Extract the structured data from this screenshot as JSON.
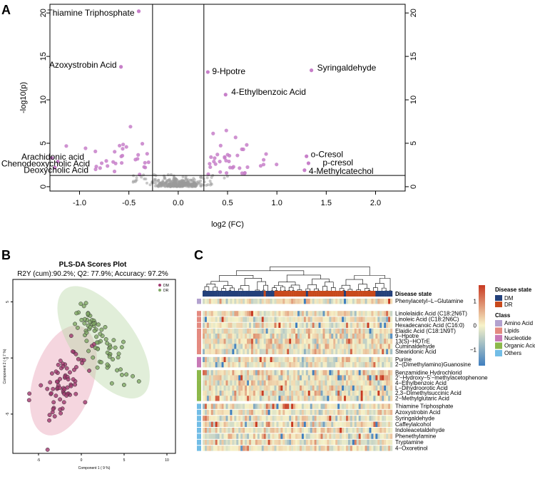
{
  "panels": {
    "a": {
      "letter": "A"
    },
    "b": {
      "letter": "B"
    },
    "c": {
      "letter": "C"
    }
  },
  "chart_data": [
    {
      "type": "scatter",
      "id": "volcano",
      "title": "",
      "xlabel": "log2 (FC)",
      "ylabel": "-log10(p)",
      "xlim": [
        -1.3,
        2.3
      ],
      "ylim": [
        -0.5,
        21
      ],
      "xticks": [
        -1.0,
        -0.5,
        0.0,
        0.5,
        1.0,
        1.5,
        2.0
      ],
      "xtick_labels": [
        "-1.0",
        "-0.5",
        "0.0",
        "0.5",
        "1.0",
        "1.5",
        "2.0"
      ],
      "yticks": [
        0,
        5,
        10,
        15,
        20
      ],
      "ytick_labels": [
        "0",
        "5",
        "10",
        "15",
        "20"
      ],
      "thresholds": {
        "fc": [
          -0.26,
          0.26
        ],
        "p": 1.3
      },
      "point_colors": {
        "significant": "#c77fc9",
        "ns": "#9a9a9a"
      },
      "labeled_points": [
        {
          "label": "Thiamine Triphosphate",
          "x": -0.4,
          "y": 20.2
        },
        {
          "label": "Azoxystrobin Acid",
          "x": -0.58,
          "y": 13.8
        },
        {
          "label": "9-Hpotre",
          "x": 0.3,
          "y": 13.2
        },
        {
          "label": "Syringaldehyde",
          "x": 1.35,
          "y": 13.4
        },
        {
          "label": "4-Ethylbenzoic Acid",
          "x": 0.48,
          "y": 10.6
        },
        {
          "label": "Arachidonic acid",
          "x": -1.28,
          "y": 3.3
        },
        {
          "label": "Chenodeoxycholic Acid",
          "x": -1.22,
          "y": 2.9
        },
        {
          "label": "Deoxycholic Acid",
          "x": -1.25,
          "y": 2.2
        },
        {
          "label": "o-Cresol",
          "x": 1.3,
          "y": 3.5
        },
        {
          "label": "p-cresol",
          "x": 1.32,
          "y": 2.7
        },
        {
          "label": "4-Methylcatechol",
          "x": 1.28,
          "y": 1.9
        }
      ]
    },
    {
      "type": "scatter",
      "id": "plsda",
      "title": "PLS-DA Scores Plot",
      "subtitle": "R2Y (cum):90.2%; Q2: 77.9%; Accuracy: 97.2%",
      "xlabel": "Component 1 ( 9 %)",
      "ylabel": "Component 2 ( 4.7 %)",
      "xlim": [
        -8,
        11
      ],
      "ylim": [
        -8.5,
        7
      ],
      "xticks": [
        -5,
        0,
        5,
        10
      ],
      "xtick_labels": [
        "-5",
        "0",
        "5",
        "10"
      ],
      "yticks": [
        -5,
        0,
        5
      ],
      "ytick_labels": [
        "-5",
        "0",
        "5"
      ],
      "legend": [
        "DM",
        "DR"
      ],
      "series": [
        {
          "name": "DM",
          "color": "#a0376e",
          "ellipse_color": "#e8a4b8",
          "center": [
            -2,
            -2.2
          ],
          "n": 75
        },
        {
          "name": "DR",
          "color": "#7fa864",
          "ellipse_color": "#bcd9ab",
          "center": [
            2.5,
            1.2
          ],
          "n": 75
        }
      ]
    },
    {
      "type": "heatmap",
      "id": "heatmap",
      "title": "",
      "row_header": "Disease state",
      "rows": [
        {
          "label": "Phenylacetyl−L−Glutamine",
          "class": "Amino Acid"
        },
        {
          "label": "Linolelaidic Acid (C18:2N6T)",
          "class": "Lipids"
        },
        {
          "label": "Linoleic Acid (C18:2N6C)",
          "class": "Lipids"
        },
        {
          "label": "Hexadecanoic Acid (C16:0)",
          "class": "Lipids"
        },
        {
          "label": "Elaidic Acid (C18:1N9T)",
          "class": "Lipids"
        },
        {
          "label": "9−Hpotre",
          "class": "Lipids"
        },
        {
          "label": "13(S)−HOTrE",
          "class": "Lipids"
        },
        {
          "label": "Cuminaldehyde",
          "class": "Lipids"
        },
        {
          "label": "Stearidonic Acid",
          "class": "Lipids"
        },
        {
          "label": "Purine",
          "class": "Nucleotide"
        },
        {
          "label": "2−(Dimethylamino)Guanosine",
          "class": "Nucleotide"
        },
        {
          "label": "Benzamidine Hydrochlorid",
          "class": "Organic Acid"
        },
        {
          "label": "2'−Hydroxy−5'−methylacetophenone",
          "class": "Organic Acid"
        },
        {
          "label": "4−Ethylbenzoic Acid",
          "class": "Organic Acid"
        },
        {
          "label": "L−Dihydroorotic Acid",
          "class": "Organic Acid"
        },
        {
          "label": "2,3−Dimethylsuccinic Acid",
          "class": "Organic Acid"
        },
        {
          "label": "2−Methylglutaric Acid",
          "class": "Organic Acid"
        },
        {
          "label": "Thiamine Triphosphate",
          "class": "Others"
        },
        {
          "label": "Azoxystrobin Acid",
          "class": "Others"
        },
        {
          "label": "Syringaldehyde",
          "class": "Others"
        },
        {
          "label": "Caffeylalcohol",
          "class": "Others"
        },
        {
          "label": "Indoleacetaldehyde",
          "class": "Others"
        },
        {
          "label": "Phenethylamine",
          "class": "Others"
        },
        {
          "label": "Tryptamine",
          "class": "Others"
        },
        {
          "label": "4−Oxoretinol",
          "class": "Others"
        }
      ],
      "legend_state_title": "Disease state",
      "legend_states": [
        {
          "name": "DM",
          "color": "#23407a"
        },
        {
          "name": "DR",
          "color": "#c8491c"
        }
      ],
      "legend_class_title": "Class",
      "legend_classes": [
        {
          "name": "Amino Acid",
          "color": "#b3a2cf"
        },
        {
          "name": "Lipids",
          "color": "#e48a80"
        },
        {
          "name": "Nucleotide",
          "color": "#c879b6"
        },
        {
          "name": "Organic Acid",
          "color": "#8cb84a"
        },
        {
          "name": "Others",
          "color": "#72bde6"
        }
      ],
      "color_scale": {
        "min": -1,
        "max": 1,
        "ticks": [
          "1",
          "0",
          "−1"
        ],
        "low": "#3f7fbf",
        "mid": "#f7f3c9",
        "high": "#c83a22"
      }
    }
  ]
}
